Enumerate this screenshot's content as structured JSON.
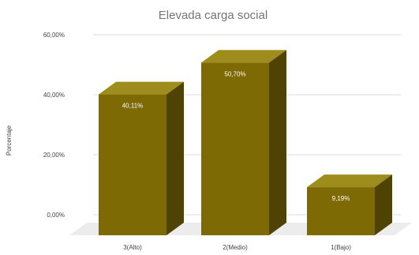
{
  "chart_data": {
    "type": "bar",
    "title": "Elevada carga social",
    "xlabel": "",
    "ylabel": "Porcentaje",
    "categories": [
      "3(Alto)",
      "2(Medio)",
      "1(Bajo)"
    ],
    "values": [
      40.11,
      50.7,
      9.19
    ],
    "value_labels": [
      "40,11%",
      "50,70%",
      "9,19%"
    ],
    "ylim": [
      0,
      60
    ],
    "yticks": [
      0,
      20,
      40,
      60
    ],
    "ytick_labels": [
      "0,00%",
      "20,00%",
      "40,00%",
      "60,00%"
    ],
    "grid": true,
    "style": "3d",
    "colors": {
      "bar_front": "#7d6a05",
      "bar_top": "#9e8c1c",
      "bar_side": "#4f4303",
      "floor": "#ececec",
      "title": "#757575",
      "grid": "#dcdcdc"
    }
  }
}
